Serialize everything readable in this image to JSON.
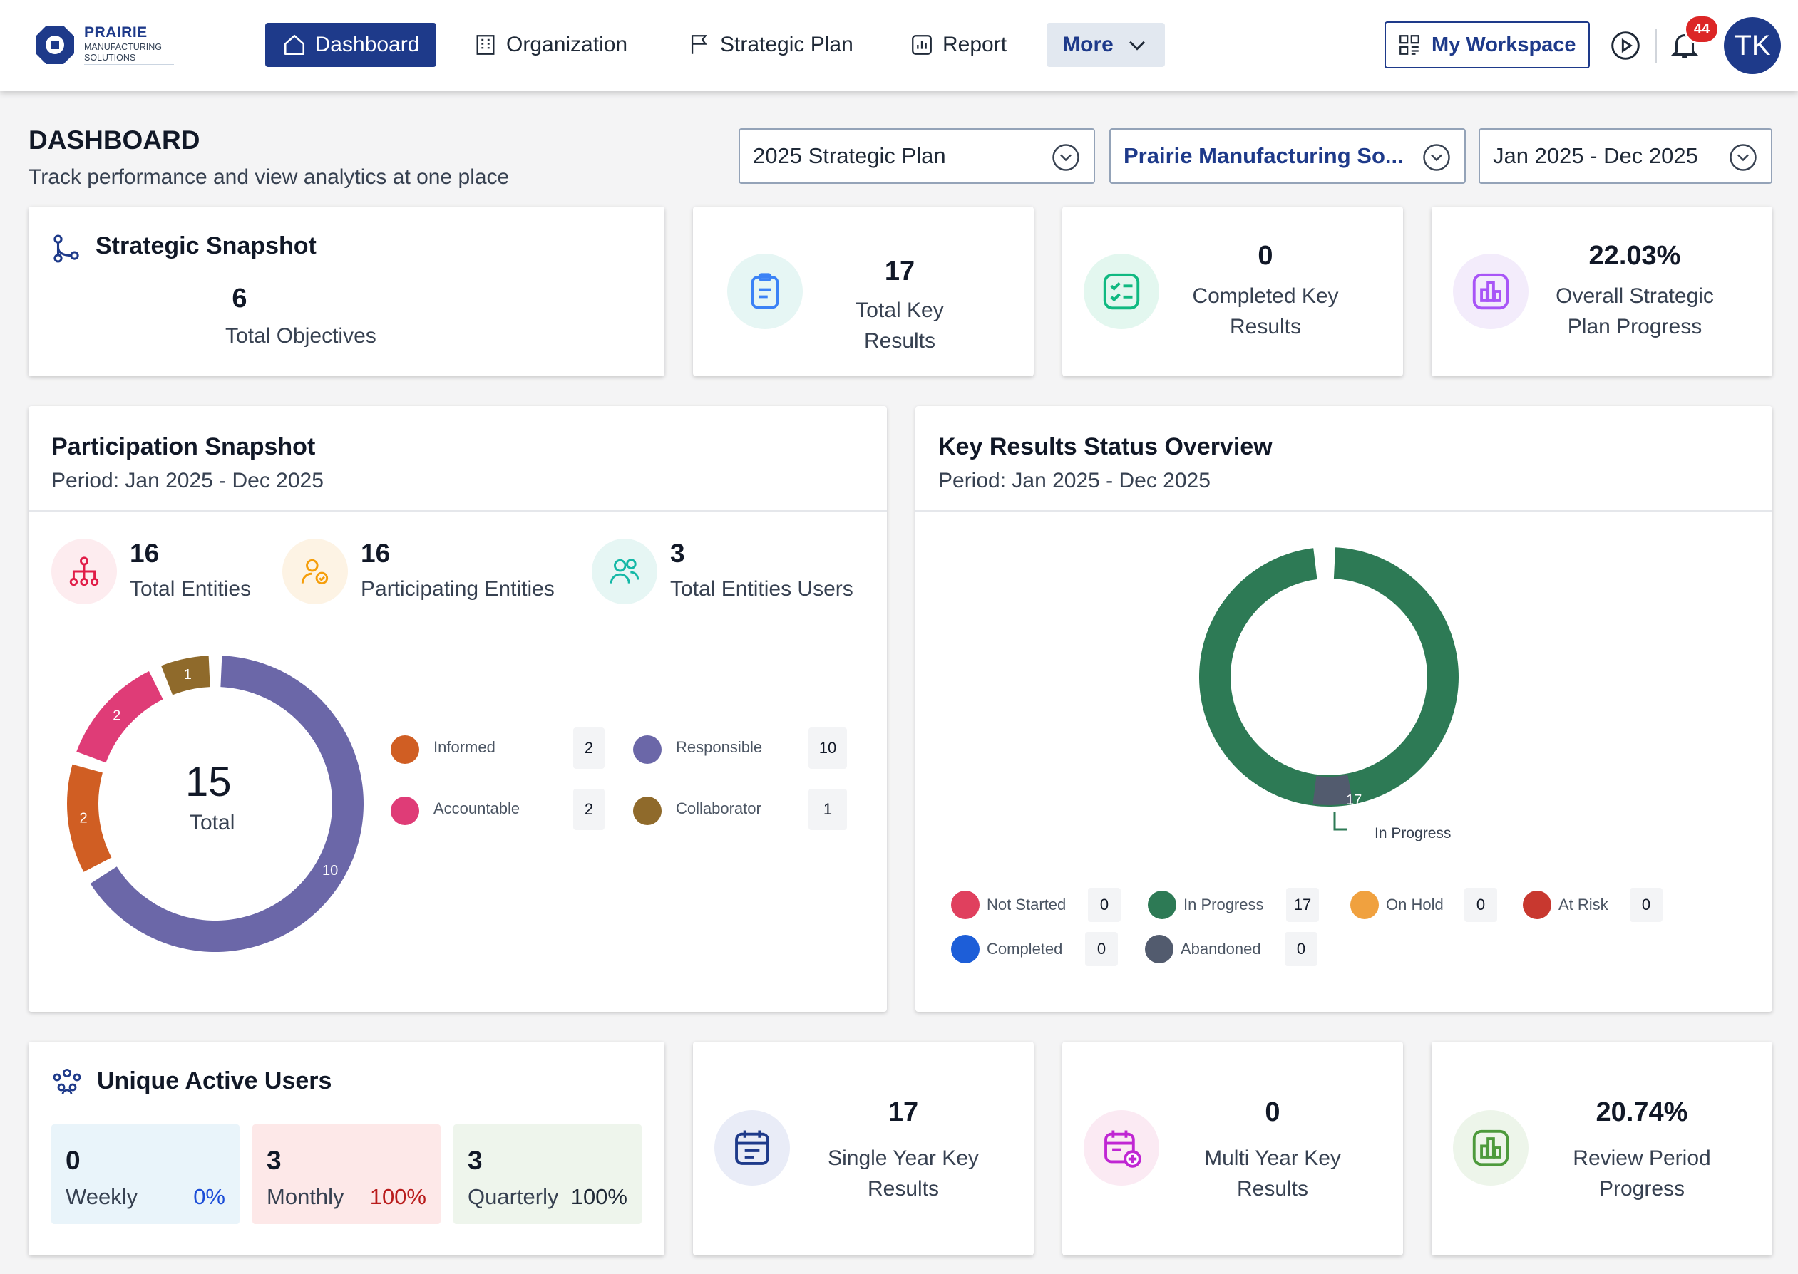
{
  "brand": {
    "name": "PRAIRIE",
    "tagline": "MANUFACTURING SOLUTIONS",
    "color": "#1e3a8a"
  },
  "nav": {
    "dashboard": "Dashboard",
    "organization": "Organization",
    "strategic_plan": "Strategic Plan",
    "report": "Report",
    "more": "More",
    "workspace": "My Workspace",
    "notifications": "44",
    "avatar_initials": "TK"
  },
  "header": {
    "title": "DASHBOARD",
    "subtitle": "Track performance and view analytics at one place",
    "plan_select": "2025 Strategic Plan",
    "org_select": "Prairie Manufacturing So...",
    "date_select": "Jan 2025 - Dec 2025"
  },
  "strategic_snapshot": {
    "title": "Strategic Snapshot",
    "objectives_value": "6",
    "objectives_label": "Total Objectives"
  },
  "stats_top": {
    "total_kr": {
      "value": "17",
      "label": "Total Key Results"
    },
    "completed_kr": {
      "value": "0",
      "label": "Completed Key Results"
    },
    "plan_progress": {
      "value": "22.03%",
      "label": "Overall Strategic Plan Progress"
    }
  },
  "participation": {
    "title": "Participation Snapshot",
    "period": "Period: Jan 2025 - Dec 2025",
    "total_entities": {
      "value": "16",
      "label": "Total Entities"
    },
    "participating_entities": {
      "value": "16",
      "label": "Participating Entities"
    },
    "entity_users": {
      "value": "3",
      "label": "Total Entities Users"
    },
    "donut_total": "15",
    "donut_total_label": "Total"
  },
  "key_results_overview": {
    "title": "Key Results Status Overview",
    "period": "Period: Jan 2025 - Dec 2025",
    "callout_value": "17",
    "callout_label": "In Progress"
  },
  "unique_users": {
    "title": "Unique Active Users",
    "weekly": {
      "value": "0",
      "label": "Weekly",
      "pct": "0%"
    },
    "monthly": {
      "value": "3",
      "label": "Monthly",
      "pct": "100%"
    },
    "quarterly": {
      "value": "3",
      "label": "Quarterly",
      "pct": "100%"
    }
  },
  "stats_bottom": {
    "single_year": {
      "value": "17",
      "label": "Single Year Key Results"
    },
    "multi_year": {
      "value": "0",
      "label": "Multi Year Key Results"
    },
    "review_progress": {
      "value": "20.74%",
      "label": "Review Period Progress"
    }
  },
  "chart_data": [
    {
      "type": "pie",
      "title": "",
      "categories": [
        "Responsible",
        "Informed",
        "Accountable",
        "Collaborator"
      ],
      "values": [
        10,
        2,
        2,
        1
      ],
      "colors": [
        "#6b67a8",
        "#d05e23",
        "#df3c77",
        "#8f6a2b"
      ],
      "legend": "right"
    },
    {
      "type": "pie",
      "title": "",
      "categories": [
        "Not Started",
        "In Progress",
        "On Hold",
        "At Risk",
        "Completed",
        "Abandoned"
      ],
      "values": [
        0,
        17,
        0,
        0,
        0,
        0
      ],
      "colors": [
        "#e0405e",
        "#2d7a55",
        "#f0a13f",
        "#c8382f",
        "#1d5ed8",
        "#525b6e"
      ],
      "legend": "bottom"
    }
  ]
}
